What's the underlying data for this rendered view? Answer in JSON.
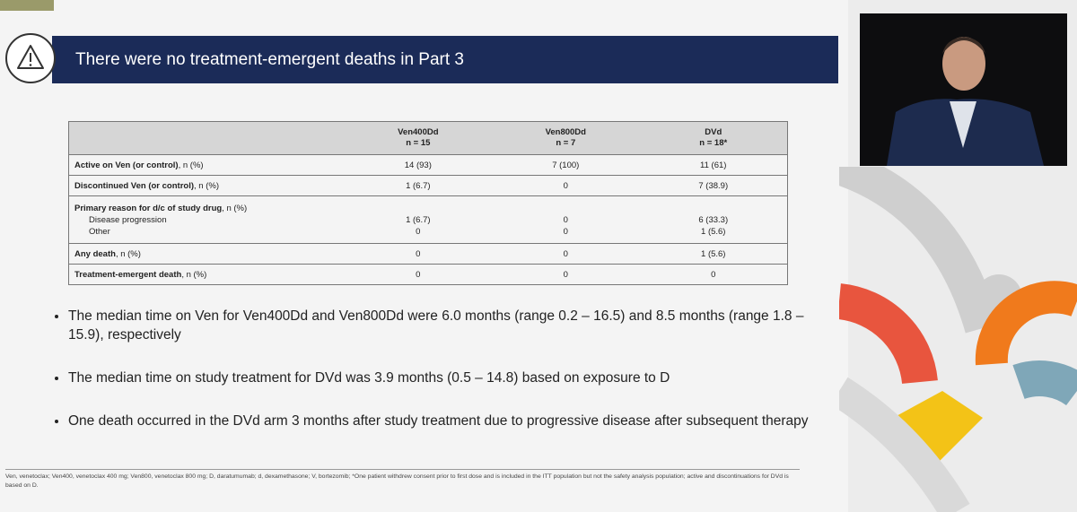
{
  "header": {
    "title": "There were no treatment-emergent deaths in Part 3"
  },
  "table": {
    "columns": [
      {
        "name": "Ven400Dd",
        "n": "n = 15"
      },
      {
        "name": "Ven800Dd",
        "n": "n = 7"
      },
      {
        "name": "DVd",
        "n": "n = 18*"
      }
    ],
    "rows": [
      {
        "label": "Active on Ven (or control)",
        "unit": ", n (%)",
        "cells": [
          "14 (93)",
          "7 (100)",
          "11 (61)"
        ]
      },
      {
        "label": "Discontinued Ven (or control)",
        "unit": ", n (%)",
        "cells": [
          "1 (6.7)",
          "0",
          "7 (38.9)"
        ]
      },
      {
        "label": "Primary reason for d/c of study drug",
        "unit": ", n (%)",
        "subrows": [
          {
            "label": "Disease progression",
            "cells": [
              "1 (6.7)",
              "0",
              "6 (33.3)"
            ]
          },
          {
            "label": "Other",
            "cells": [
              "0",
              "0",
              "1 (5.6)"
            ]
          }
        ]
      },
      {
        "label": "Any death",
        "unit": ", n (%)",
        "cells": [
          "0",
          "0",
          "1 (5.6)"
        ]
      },
      {
        "label": "Treatment-emergent death",
        "unit": ", n (%)",
        "cells": [
          "0",
          "0",
          "0"
        ]
      }
    ]
  },
  "bullets": [
    "The median time on Ven for Ven400Dd and Ven800Dd were 6.0 months (range 0.2 – 16.5) and 8.5 months (range 1.8 – 15.9), respectively",
    "The median time on study treatment for DVd was 3.9 months (0.5 – 14.8) based on exposure to D",
    "One death occurred in the DVd arm 3 months after study treatment due to progressive disease after subsequent therapy"
  ],
  "footnote": "Ven, venetoclax; Ven400, venetoclax 400 mg; Ven800, venetoclax 800 mg; D, daratumumab; d, dexamethasone; V, bortezomib; *One patient withdrew consent prior to first dose and is included in the ITT population but not the safety analysis population; active and discontinuations for DVd is based on D."
}
